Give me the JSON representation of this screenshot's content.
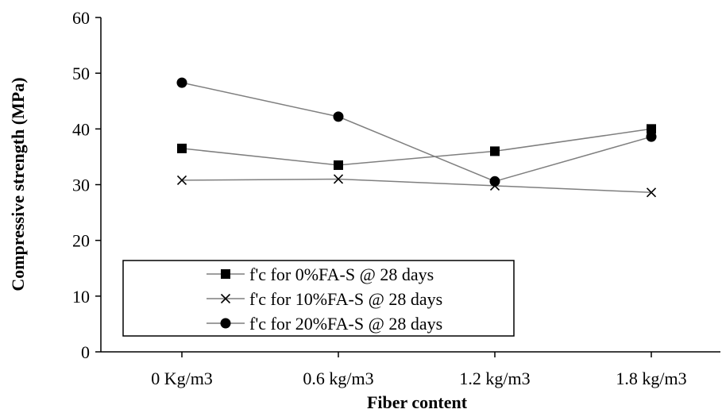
{
  "chart_data": {
    "type": "line",
    "categories": [
      "0 Kg/m3",
      "0.6 kg/m3",
      "1.2 kg/m3",
      "1.8 kg/m3"
    ],
    "xlabel": "Fiber content",
    "ylabel": "Compressive strength (MPa)",
    "ylim": [
      0,
      60
    ],
    "yticks": [
      "0",
      "10",
      "20",
      "30",
      "40",
      "50",
      "60"
    ],
    "grid": false,
    "legend_position": "bottom-left",
    "series": [
      {
        "name": "f'c for 0%FA-S @ 28 days",
        "marker": "square",
        "values": [
          36.5,
          33.5,
          36.0,
          40.0
        ]
      },
      {
        "name": "f'c for 10%FA-S @ 28 days",
        "marker": "x",
        "values": [
          30.8,
          31.0,
          29.8,
          28.6
        ]
      },
      {
        "name": "f'c for 20%FA-S @ 28 days",
        "marker": "circle",
        "values": [
          48.3,
          42.2,
          30.6,
          38.6
        ]
      }
    ],
    "colors": {
      "line": "#7f7f7f",
      "marker": "#000000"
    }
  }
}
